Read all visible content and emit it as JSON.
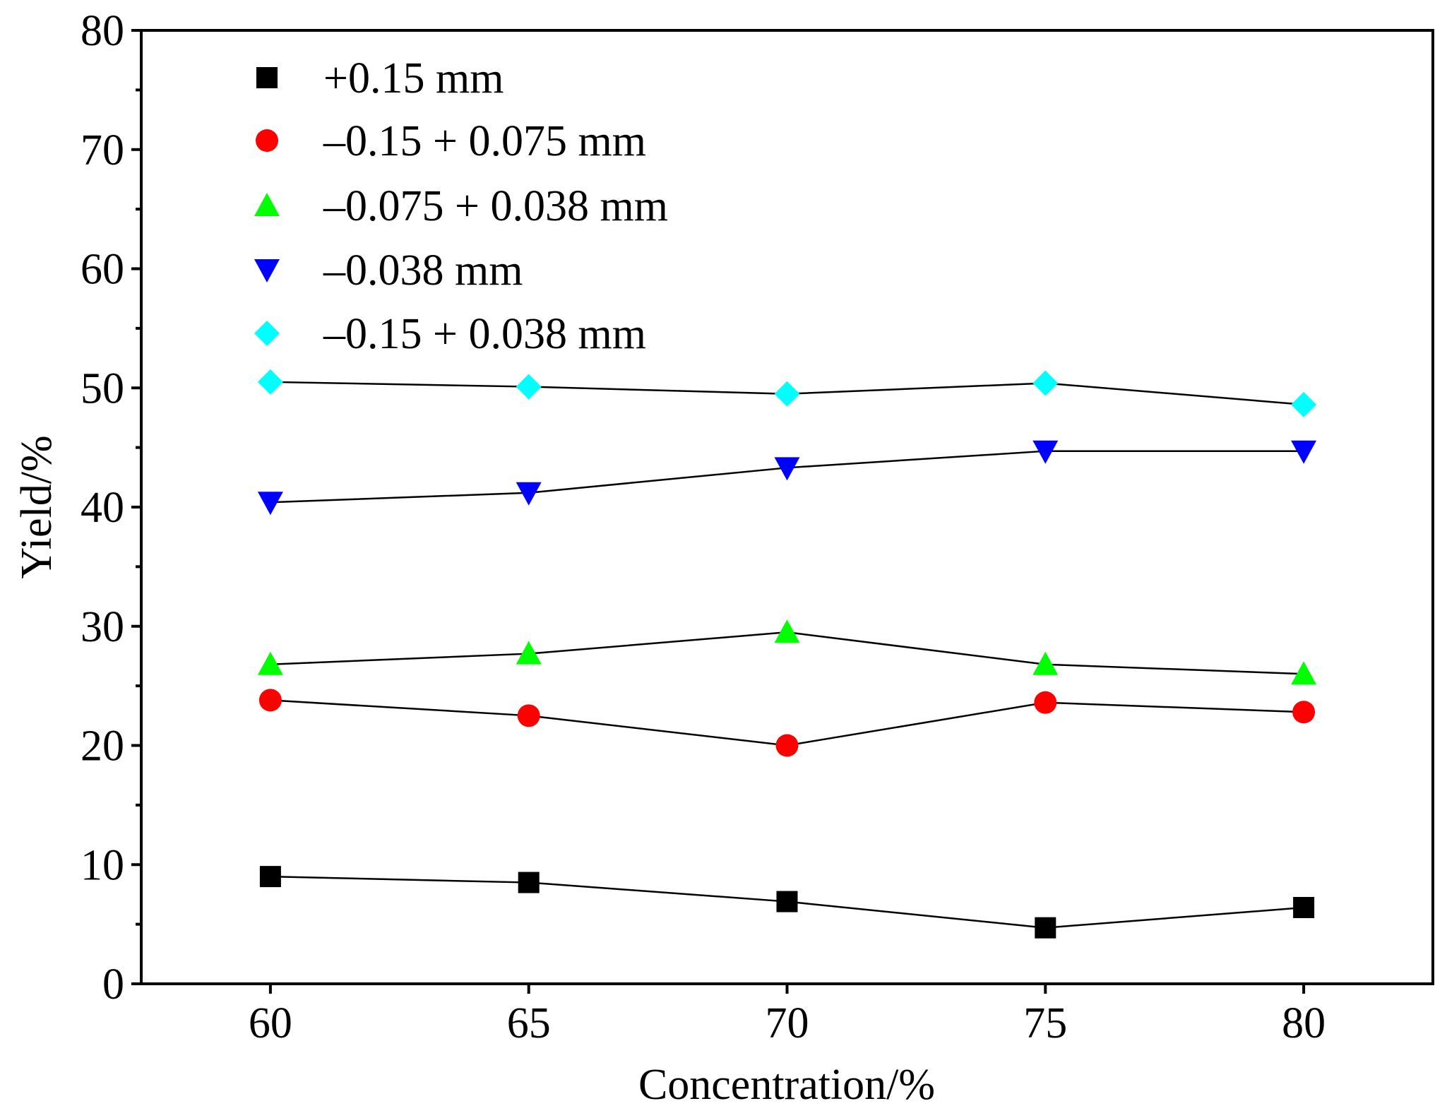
{
  "chart_data": {
    "type": "line",
    "title": "",
    "xlabel": "Concentration/%",
    "ylabel": "Yield/%",
    "xlim": [
      57.5,
      82.5
    ],
    "ylim": [
      0,
      80
    ],
    "x_ticks": [
      60,
      65,
      70,
      75,
      80
    ],
    "y_ticks": [
      0,
      10,
      20,
      30,
      40,
      50,
      60,
      70,
      80
    ],
    "y_minor_ticks": [
      5,
      15,
      25,
      35,
      45,
      55,
      65,
      75
    ],
    "grid": false,
    "legend_position": "top-left",
    "x": [
      60,
      65,
      70,
      75,
      80
    ],
    "series": [
      {
        "name": "+0.15 mm",
        "marker": "square",
        "color": "#000000",
        "values": [
          9.0,
          8.5,
          6.9,
          4.7,
          6.4
        ]
      },
      {
        "name": "–0.15 + 0.075 mm",
        "marker": "circle",
        "color": "#ff0000",
        "values": [
          23.8,
          22.5,
          20.0,
          23.6,
          22.8
        ]
      },
      {
        "name": "–0.075 + 0.038 mm",
        "marker": "triangle-up",
        "color": "#00ff00",
        "values": [
          26.8,
          27.7,
          29.5,
          26.8,
          26.0
        ]
      },
      {
        "name": "–0.038 mm",
        "marker": "triangle-down",
        "color": "#0000ff",
        "values": [
          40.4,
          41.2,
          43.3,
          44.7,
          44.7
        ]
      },
      {
        "name": "–0.15 + 0.038 mm",
        "marker": "diamond",
        "color": "#00ffff",
        "values": [
          50.5,
          50.1,
          49.5,
          50.4,
          48.6
        ]
      }
    ]
  }
}
